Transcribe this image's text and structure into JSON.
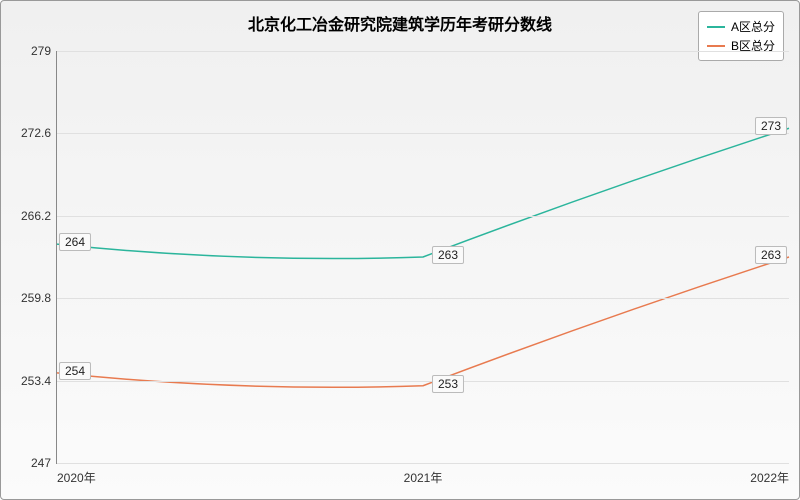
{
  "chart": {
    "type": "line",
    "title": "北京化工冶金研究院建筑学历年考研分数线",
    "title_fontsize": 16,
    "background_gradient_top": "#f0f0f0",
    "background_gradient_bottom": "#fbfbfb",
    "border_color": "#999999",
    "grid_color": "#e0e0e0",
    "axis_color": "#888888",
    "tick_fontsize": 12,
    "label_fontsize": 12,
    "x_categories": [
      "2020年",
      "2021年",
      "2022年"
    ],
    "ylim": [
      247,
      279
    ],
    "yticks": [
      247,
      253.4,
      259.8,
      266.2,
      272.6,
      279
    ],
    "ytick_labels": [
      "247",
      "253.4",
      "259.8",
      "266.2",
      "272.6",
      "279"
    ],
    "series": [
      {
        "name": "A区总分",
        "color": "#2bb59c",
        "line_width": 1.5,
        "values": [
          264,
          263,
          273
        ],
        "labels": [
          "264",
          "263",
          "273"
        ]
      },
      {
        "name": "B区总分",
        "color": "#e87a4f",
        "line_width": 1.5,
        "values": [
          254,
          253,
          263
        ],
        "labels": [
          "254",
          "253",
          "263"
        ]
      }
    ],
    "legend_position": "top-right",
    "curve_smoothing": true
  }
}
